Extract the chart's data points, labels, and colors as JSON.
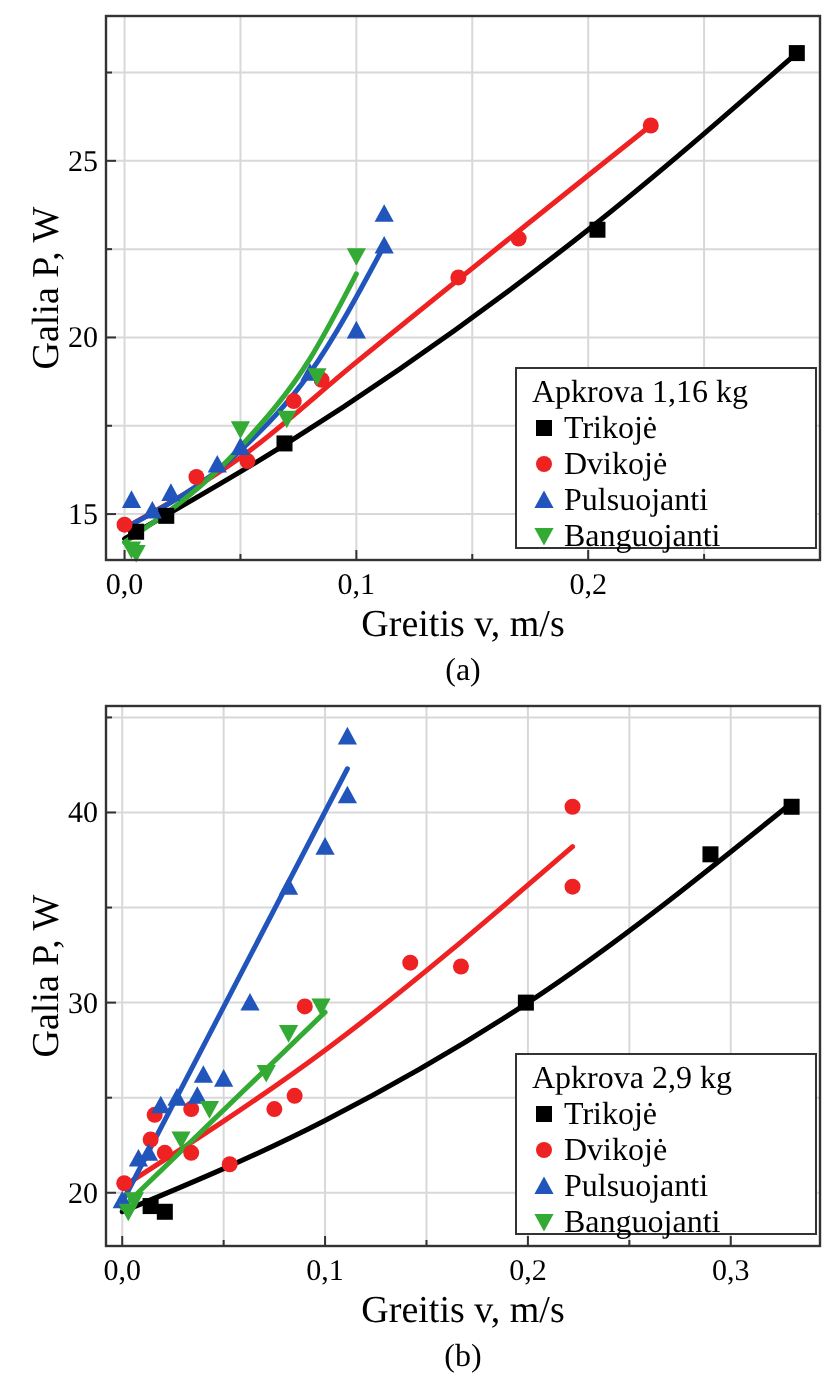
{
  "chart_data": [
    {
      "type": "scatter",
      "xlabel": "Greitis v, m/s",
      "ylabel": "Galia P, W",
      "legend_title": "Apkrova 1,16 kg",
      "annotations": [
        "(a)"
      ],
      "grid": true,
      "legend": "bottom right",
      "xlim": [
        -0.008,
        0.3
      ],
      "ylim": [
        13.7,
        29.1
      ],
      "xticks": [
        {
          "value": 0,
          "label": "0,0"
        },
        {
          "value": 0.05,
          "label": null
        },
        {
          "value": 0.1,
          "label": "0,1"
        },
        {
          "value": 0.15,
          "label": null
        },
        {
          "value": 0.2,
          "label": "0,2"
        },
        {
          "value": 0.25,
          "label": null
        }
      ],
      "yticks": [
        15,
        {
          "value": 17.5,
          "label": null
        },
        20,
        {
          "value": 22.5,
          "label": null
        },
        25,
        {
          "value": 27.5,
          "label": null
        }
      ],
      "series": [
        {
          "name": "Trikojė",
          "color": "#000000",
          "marker": "square",
          "x": [
            0.005,
            0.018,
            0.069,
            0.204,
            0.29
          ],
          "values": [
            14.5,
            14.95,
            17.0,
            23.05,
            28.05
          ]
        },
        {
          "name": "Dvikojė",
          "color": "#ee2222",
          "marker": "circle",
          "x": [
            0.0,
            0.031,
            0.053,
            0.073,
            0.085,
            0.144,
            0.17,
            0.227
          ],
          "values": [
            14.7,
            16.05,
            16.5,
            18.2,
            18.8,
            21.7,
            22.8,
            26.0
          ]
        },
        {
          "name": "Pulsuojanti",
          "color": "#2255bb",
          "marker": "triangle",
          "x": [
            0.003,
            0.012,
            0.02,
            0.04,
            0.05,
            0.08,
            0.1,
            0.112,
            0.112
          ],
          "values": [
            15.4,
            15.1,
            15.6,
            16.4,
            16.9,
            19.0,
            20.2,
            22.6,
            23.5
          ]
        },
        {
          "name": "Banguojanti",
          "color": "#33aa33",
          "marker": "triangle-down",
          "x": [
            0.003,
            0.005,
            0.05,
            0.07,
            0.083,
            0.1
          ],
          "values": [
            14.0,
            13.9,
            17.4,
            17.7,
            18.9,
            22.3
          ]
        },
        {
          "type": "line",
          "color": "#000000",
          "marker": "none",
          "x": [
            0.0,
            0.07,
            0.2,
            0.29
          ],
          "values": [
            14.3,
            17.0,
            23.05,
            28.05
          ]
        },
        {
          "type": "line",
          "color": "#ee2222",
          "marker": "none",
          "x": [
            0.0,
            0.05,
            0.1,
            0.227
          ],
          "values": [
            14.6,
            16.6,
            19.3,
            26.0
          ]
        },
        {
          "type": "line",
          "color": "#2255bb",
          "marker": "none",
          "x": [
            0.0,
            0.05,
            0.08,
            0.112
          ],
          "values": [
            14.6,
            16.8,
            19.0,
            22.6
          ]
        },
        {
          "type": "line",
          "color": "#33aa33",
          "marker": "none",
          "x": [
            0.0,
            0.05,
            0.08,
            0.1
          ],
          "values": [
            14.2,
            16.9,
            19.4,
            21.8
          ]
        }
      ]
    },
    {
      "type": "scatter",
      "xlabel": "Greitis v, m/s",
      "ylabel": "Galia P, W",
      "legend_title": "Apkrova 2,9 kg",
      "annotations": [
        "(b)"
      ],
      "grid": true,
      "legend": "bottom right",
      "xlim": [
        -0.008,
        0.344
      ],
      "ylim": [
        17.2,
        45.6
      ],
      "xticks": [
        {
          "value": 0,
          "label": "0,0"
        },
        {
          "value": 0.05,
          "label": null
        },
        {
          "value": 0.1,
          "label": "0,1"
        },
        {
          "value": 0.15,
          "label": null
        },
        {
          "value": 0.2,
          "label": "0,2"
        },
        {
          "value": 0.25,
          "label": null
        },
        {
          "value": 0.3,
          "label": "0,3"
        }
      ],
      "yticks": [
        20,
        {
          "value": 25,
          "label": null
        },
        30,
        {
          "value": 35,
          "label": null
        },
        40,
        {
          "value": 45,
          "label": null
        }
      ],
      "series": [
        {
          "name": "Trikojė",
          "color": "#000000",
          "marker": "square",
          "x": [
            0.014,
            0.021,
            0.199,
            0.29,
            0.33
          ],
          "values": [
            19.3,
            19.0,
            30.0,
            37.8,
            40.3
          ]
        },
        {
          "name": "Dvikojė",
          "color": "#ee2222",
          "marker": "circle",
          "x": [
            0.001,
            0.014,
            0.016,
            0.021,
            0.034,
            0.034,
            0.053,
            0.075,
            0.085,
            0.09,
            0.142,
            0.167,
            0.222,
            0.222
          ],
          "values": [
            20.5,
            22.8,
            24.1,
            22.1,
            22.1,
            24.4,
            21.5,
            24.4,
            25.1,
            29.8,
            32.1,
            31.9,
            40.3,
            36.1
          ]
        },
        {
          "name": "Pulsuojanti",
          "color": "#2255bb",
          "marker": "triangle",
          "x": [
            0.0,
            0.008,
            0.013,
            0.019,
            0.027,
            0.037,
            0.04,
            0.05,
            0.063,
            0.082,
            0.1,
            0.111,
            0.111
          ],
          "values": [
            19.6,
            21.8,
            22.1,
            24.6,
            25.0,
            25.1,
            26.2,
            26.0,
            30.0,
            36.1,
            38.2,
            44.0,
            40.9
          ]
        },
        {
          "name": "Banguojanti",
          "color": "#33aa33",
          "marker": "triangle-down",
          "x": [
            0.003,
            0.006,
            0.029,
            0.043,
            0.071,
            0.082,
            0.098
          ],
          "values": [
            19.0,
            19.6,
            22.8,
            24.4,
            26.3,
            28.4,
            29.8
          ]
        },
        {
          "type": "line",
          "color": "#000000",
          "marker": "none",
          "x": [
            0.0,
            0.1,
            0.2,
            0.33
          ],
          "values": [
            19.0,
            23.8,
            30.0,
            40.5
          ]
        },
        {
          "type": "line",
          "color": "#ee2222",
          "marker": "none",
          "x": [
            0.0,
            0.1,
            0.222
          ],
          "values": [
            20.3,
            27.5,
            38.2
          ]
        },
        {
          "type": "line",
          "color": "#2255bb",
          "marker": "none",
          "x": [
            0.0,
            0.111
          ],
          "values": [
            19.5,
            42.3
          ]
        },
        {
          "type": "line",
          "color": "#33aa33",
          "marker": "none",
          "x": [
            0.0,
            0.1
          ],
          "values": [
            19.2,
            29.5
          ]
        }
      ]
    }
  ]
}
